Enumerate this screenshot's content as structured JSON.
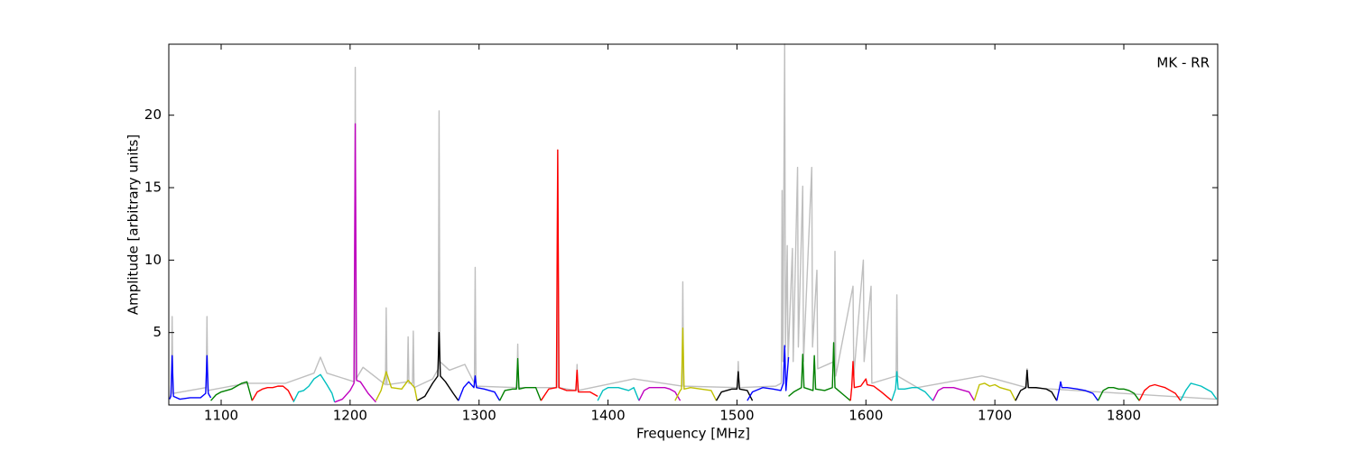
{
  "chart_data": {
    "type": "line",
    "xlabel": "Frequency [MHz]",
    "ylabel": "Amplitude [arbitrary units]",
    "annotation": "MK - RR",
    "xlim": [
      1059.4,
      1872.8
    ],
    "ylim": [
      0,
      24.9
    ],
    "xticks": [
      1100,
      1200,
      1300,
      1400,
      1500,
      1600,
      1700,
      1800
    ],
    "yticks": [
      5,
      10,
      15,
      20
    ],
    "grid": false,
    "series": [
      {
        "color": "#bfbfbf",
        "x": [
          1060,
          1061.4,
          1062,
          1062.6,
          1088.4,
          1089,
          1089.6,
          1120,
          1150,
          1172,
          1177,
          1182,
          1203.4,
          1204,
          1204.6,
          1210,
          1227.4,
          1228,
          1228.6,
          1244.4,
          1245,
          1245.6,
          1248.4,
          1249,
          1249.6,
          1264,
          1268.4,
          1269,
          1269.6,
          1277,
          1289,
          1296.4,
          1297,
          1297.6,
          1329.4,
          1330,
          1330.6,
          1360.4,
          1361,
          1361.6,
          1375.4,
          1376,
          1376.6,
          1420,
          1457.4,
          1458,
          1458.6,
          1500.4,
          1501,
          1501.6,
          1530,
          1534.4,
          1535,
          1535.6,
          1537,
          1537.6,
          1539,
          1539.6,
          1543,
          1543.6,
          1547,
          1547.6,
          1551,
          1551.6,
          1558,
          1558.6,
          1562,
          1562.6,
          1575.4,
          1576,
          1576.6,
          1590,
          1590.6,
          1598,
          1598.6,
          1604,
          1604.6,
          1623.4,
          1624,
          1624.6,
          1640,
          1690,
          1700,
          1724.4,
          1725,
          1725.6,
          1872
        ],
        "values": [
          0.5,
          0.8,
          6.1,
          0.8,
          1.2,
          6.1,
          1.0,
          1.5,
          1.5,
          2.2,
          3.3,
          2.2,
          1.6,
          23.3,
          1.8,
          2.6,
          1.4,
          6.7,
          1.4,
          1.6,
          4.7,
          1.5,
          1.5,
          5.1,
          1.2,
          1.8,
          2.5,
          20.3,
          3.0,
          2.4,
          2.8,
          1.5,
          9.5,
          1.3,
          1.2,
          4.2,
          1.2,
          1.2,
          17.6,
          1.2,
          1.0,
          2.8,
          1.0,
          1.8,
          1.3,
          8.5,
          1.3,
          1.2,
          3.0,
          1.2,
          1.3,
          1.5,
          14.8,
          3.0,
          24.9,
          4.0,
          11,
          3,
          10.8,
          3,
          16.4,
          4,
          15.1,
          3,
          16.4,
          4,
          9.3,
          2.5,
          3,
          10.6,
          2,
          8.2,
          2,
          10,
          3,
          8.2,
          1.5,
          2,
          7.6,
          2,
          1.2,
          2.0,
          1.8,
          1.2,
          2.5,
          1.2,
          0.4
        ]
      },
      {
        "color": "#0000ff",
        "x": [
          1060,
          1061,
          1062,
          1063,
          1068,
          1076,
          1084,
          1088,
          1089,
          1090,
          1092
        ],
        "values": [
          0.4,
          0.6,
          3.4,
          0.6,
          0.4,
          0.5,
          0.5,
          0.8,
          3.4,
          0.8,
          0.5
        ]
      },
      {
        "color": "#008000",
        "x": [
          1092,
          1096,
          1100,
          1104,
          1108,
          1112,
          1116,
          1120,
          1124
        ],
        "values": [
          0.3,
          0.7,
          0.9,
          1.0,
          1.1,
          1.3,
          1.5,
          1.6,
          0.3
        ]
      },
      {
        "color": "#ff0000",
        "x": [
          1124,
          1128,
          1132,
          1136,
          1140,
          1144,
          1148,
          1152,
          1156
        ],
        "values": [
          0.3,
          0.9,
          1.1,
          1.2,
          1.2,
          1.3,
          1.3,
          1.0,
          0.3
        ]
      },
      {
        "color": "#00bfbf",
        "x": [
          1156,
          1160,
          1164,
          1168,
          1172,
          1177,
          1182,
          1186,
          1188
        ],
        "values": [
          0.2,
          0.9,
          1.0,
          1.3,
          1.8,
          2.1,
          1.4,
          0.8,
          0.2
        ]
      },
      {
        "color": "#bf00bf",
        "x": [
          1188,
          1194,
          1200,
          1203,
          1204,
          1205,
          1208,
          1214,
          1220
        ],
        "values": [
          0.2,
          0.4,
          1.0,
          1.5,
          19.4,
          1.7,
          1.6,
          0.8,
          0.2
        ]
      },
      {
        "color": "#bfbf00",
        "x": [
          1220,
          1224,
          1228,
          1232,
          1240,
          1245,
          1250,
          1252
        ],
        "values": [
          0.3,
          1.0,
          2.3,
          1.2,
          1.1,
          1.7,
          1.2,
          0.3
        ]
      },
      {
        "color": "#000000",
        "x": [
          1252,
          1258,
          1264,
          1268,
          1269,
          1270,
          1274,
          1280,
          1284
        ],
        "values": [
          0.3,
          0.6,
          1.5,
          2.0,
          5.0,
          2.0,
          1.6,
          0.8,
          0.3
        ]
      },
      {
        "color": "#0000ff",
        "x": [
          1284,
          1288,
          1292,
          1296,
          1297,
          1298,
          1304,
          1312,
          1316
        ],
        "values": [
          0.3,
          1.2,
          1.6,
          1.2,
          2.0,
          1.2,
          1.1,
          0.9,
          0.3
        ]
      },
      {
        "color": "#008000",
        "x": [
          1316,
          1320,
          1326,
          1329,
          1330,
          1331,
          1336,
          1344,
          1348
        ],
        "values": [
          0.3,
          1.0,
          1.1,
          1.1,
          3.2,
          1.1,
          1.2,
          1.2,
          0.3
        ]
      },
      {
        "color": "#ff0000",
        "x": [
          1348,
          1354,
          1360,
          1361,
          1362,
          1368,
          1375,
          1376,
          1377,
          1386,
          1392
        ],
        "values": [
          0.3,
          1.1,
          1.2,
          17.6,
          1.2,
          1.0,
          1.0,
          2.4,
          0.9,
          0.9,
          0.6
        ]
      },
      {
        "color": "#00bfbf",
        "x": [
          1392,
          1396,
          1400,
          1404,
          1408,
          1412,
          1416,
          1420,
          1424
        ],
        "values": [
          0.3,
          1.0,
          1.2,
          1.2,
          1.2,
          1.1,
          1.0,
          1.2,
          0.3
        ]
      },
      {
        "color": "#bf00bf",
        "x": [
          1424,
          1428,
          1432,
          1436,
          1440,
          1444,
          1448,
          1452,
          1456
        ],
        "values": [
          0.3,
          1.0,
          1.2,
          1.2,
          1.2,
          1.2,
          1.1,
          0.9,
          0.3
        ]
      },
      {
        "color": "#bfbf00",
        "x": [
          1452,
          1456,
          1457,
          1458,
          1459,
          1464,
          1472,
          1480,
          1484
        ],
        "values": [
          0.3,
          1.0,
          1.1,
          5.3,
          1.1,
          1.2,
          1.1,
          1.0,
          0.3
        ]
      },
      {
        "color": "#000000",
        "x": [
          1484,
          1488,
          1492,
          1496,
          1500,
          1501,
          1502,
          1508,
          1512
        ],
        "values": [
          0.3,
          0.9,
          1.0,
          1.1,
          1.1,
          2.3,
          1.1,
          1.0,
          0.3
        ]
      },
      {
        "color": "#0000ff",
        "x": [
          1508,
          1512,
          1520,
          1528,
          1534,
          1536,
          1537,
          1538,
          1540
        ],
        "values": [
          0.3,
          0.9,
          1.2,
          1.1,
          1.0,
          1.5,
          4.1,
          1.0,
          3.3
        ]
      },
      {
        "color": "#008000",
        "x": [
          1540,
          1544,
          1550,
          1551,
          1552,
          1559,
          1560,
          1561,
          1568,
          1574,
          1575,
          1576,
          1584,
          1588
        ],
        "values": [
          0.6,
          0.9,
          1.2,
          3.5,
          1.2,
          1.0,
          3.4,
          1.1,
          1.0,
          1.2,
          4.3,
          1.2,
          0.6,
          0.3
        ]
      },
      {
        "color": "#ff0000",
        "x": [
          1588,
          1589,
          1590,
          1591,
          1596,
          1600,
          1601,
          1606,
          1612,
          1620
        ],
        "values": [
          0.3,
          1.2,
          3.0,
          1.2,
          1.3,
          1.8,
          1.4,
          1.3,
          0.9,
          0.3
        ]
      },
      {
        "color": "#00bfbf",
        "x": [
          1620,
          1623,
          1624,
          1625,
          1630,
          1636,
          1640,
          1646,
          1652
        ],
        "values": [
          0.3,
          1.1,
          2.3,
          1.1,
          1.1,
          1.2,
          1.2,
          0.9,
          0.3
        ]
      },
      {
        "color": "#bf00bf",
        "x": [
          1652,
          1656,
          1660,
          1664,
          1668,
          1672,
          1676,
          1680,
          1684
        ],
        "values": [
          0.3,
          1.0,
          1.2,
          1.2,
          1.2,
          1.1,
          1.0,
          0.9,
          0.3
        ]
      },
      {
        "color": "#bfbf00",
        "x": [
          1684,
          1688,
          1692,
          1696,
          1700,
          1704,
          1708,
          1712,
          1716
        ],
        "values": [
          0.3,
          1.4,
          1.5,
          1.3,
          1.4,
          1.2,
          1.1,
          1.0,
          0.3
        ]
      },
      {
        "color": "#000000",
        "x": [
          1716,
          1720,
          1724,
          1725,
          1726,
          1732,
          1740,
          1744,
          1748
        ],
        "values": [
          0.3,
          1.0,
          1.2,
          2.4,
          1.2,
          1.2,
          1.1,
          0.9,
          0.3
        ]
      },
      {
        "color": "#0000ff",
        "x": [
          1748,
          1750,
          1751,
          1752,
          1756,
          1764,
          1770,
          1776,
          1780
        ],
        "values": [
          0.3,
          1.1,
          1.6,
          1.2,
          1.2,
          1.1,
          1.0,
          0.8,
          0.3
        ]
      },
      {
        "color": "#008000",
        "x": [
          1780,
          1784,
          1788,
          1792,
          1796,
          1800,
          1804,
          1808,
          1812
        ],
        "values": [
          0.3,
          1.0,
          1.2,
          1.2,
          1.1,
          1.1,
          1.0,
          0.8,
          0.3
        ]
      },
      {
        "color": "#ff0000",
        "x": [
          1812,
          1816,
          1820,
          1824,
          1828,
          1832,
          1836,
          1840,
          1844
        ],
        "values": [
          0.3,
          1.0,
          1.3,
          1.4,
          1.3,
          1.2,
          1.0,
          0.8,
          0.3
        ]
      },
      {
        "color": "#00bfbf",
        "x": [
          1844,
          1848,
          1852,
          1856,
          1860,
          1864,
          1868,
          1872
        ],
        "values": [
          0.3,
          1.0,
          1.5,
          1.4,
          1.3,
          1.1,
          0.9,
          0.4
        ]
      }
    ]
  }
}
